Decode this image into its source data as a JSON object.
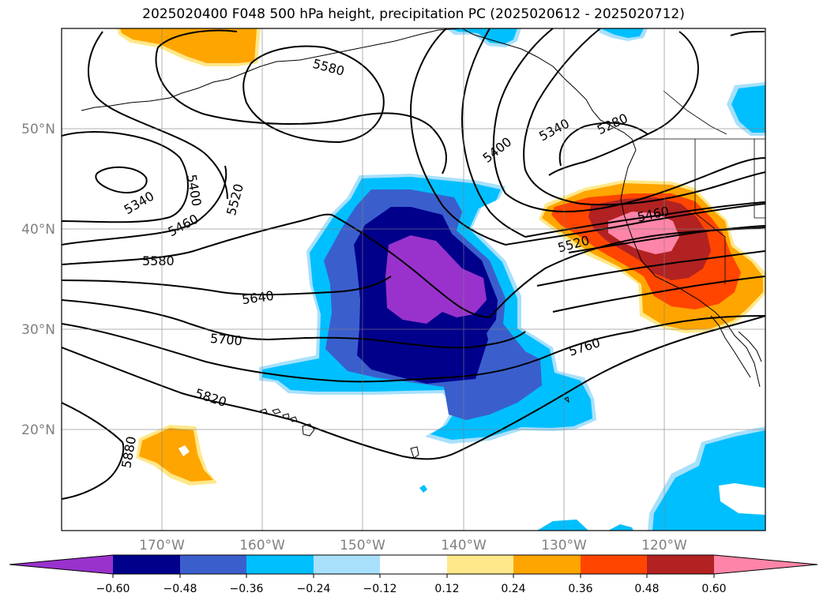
{
  "title": "2025020400 F048 500 hPa height, precipitation PC (2025020612 - 2025020712)",
  "map": {
    "lat_labels": [
      "50°N",
      "40°N",
      "30°N",
      "20°N"
    ],
    "lon_labels": [
      "170°W",
      "160°W",
      "150°W",
      "140°W",
      "130°W",
      "120°W"
    ],
    "contour_labels": [
      "5580",
      "5340",
      "5400",
      "5460",
      "5520",
      "5580",
      "5640",
      "5700",
      "5820",
      "5880",
      "5400",
      "5340",
      "5280",
      "5460",
      "5520",
      "5760"
    ]
  },
  "colorbar": {
    "ticks": [
      "−0.60",
      "−0.48",
      "−0.36",
      "−0.24",
      "−0.12",
      "0.12",
      "0.24",
      "0.36",
      "0.48",
      "0.60"
    ],
    "colors": [
      "#9932cc",
      "#00008b",
      "#3a5fcd",
      "#00bfff",
      "#a8e0fb",
      "#ffffff",
      "#ffe88a",
      "#ffa500",
      "#ff4500",
      "#b22222",
      "#ff85a8"
    ]
  },
  "colors": {
    "purple": "#9932cc",
    "navy": "#00008b",
    "royal": "#3a5fcd",
    "sky": "#00bfff",
    "pale_blue": "#a8e0fb",
    "pale_yellow": "#ffe88a",
    "orange": "#ffa500",
    "red_orange": "#ff4500",
    "firebrick": "#b22222",
    "pink": "#ff85a8"
  }
}
